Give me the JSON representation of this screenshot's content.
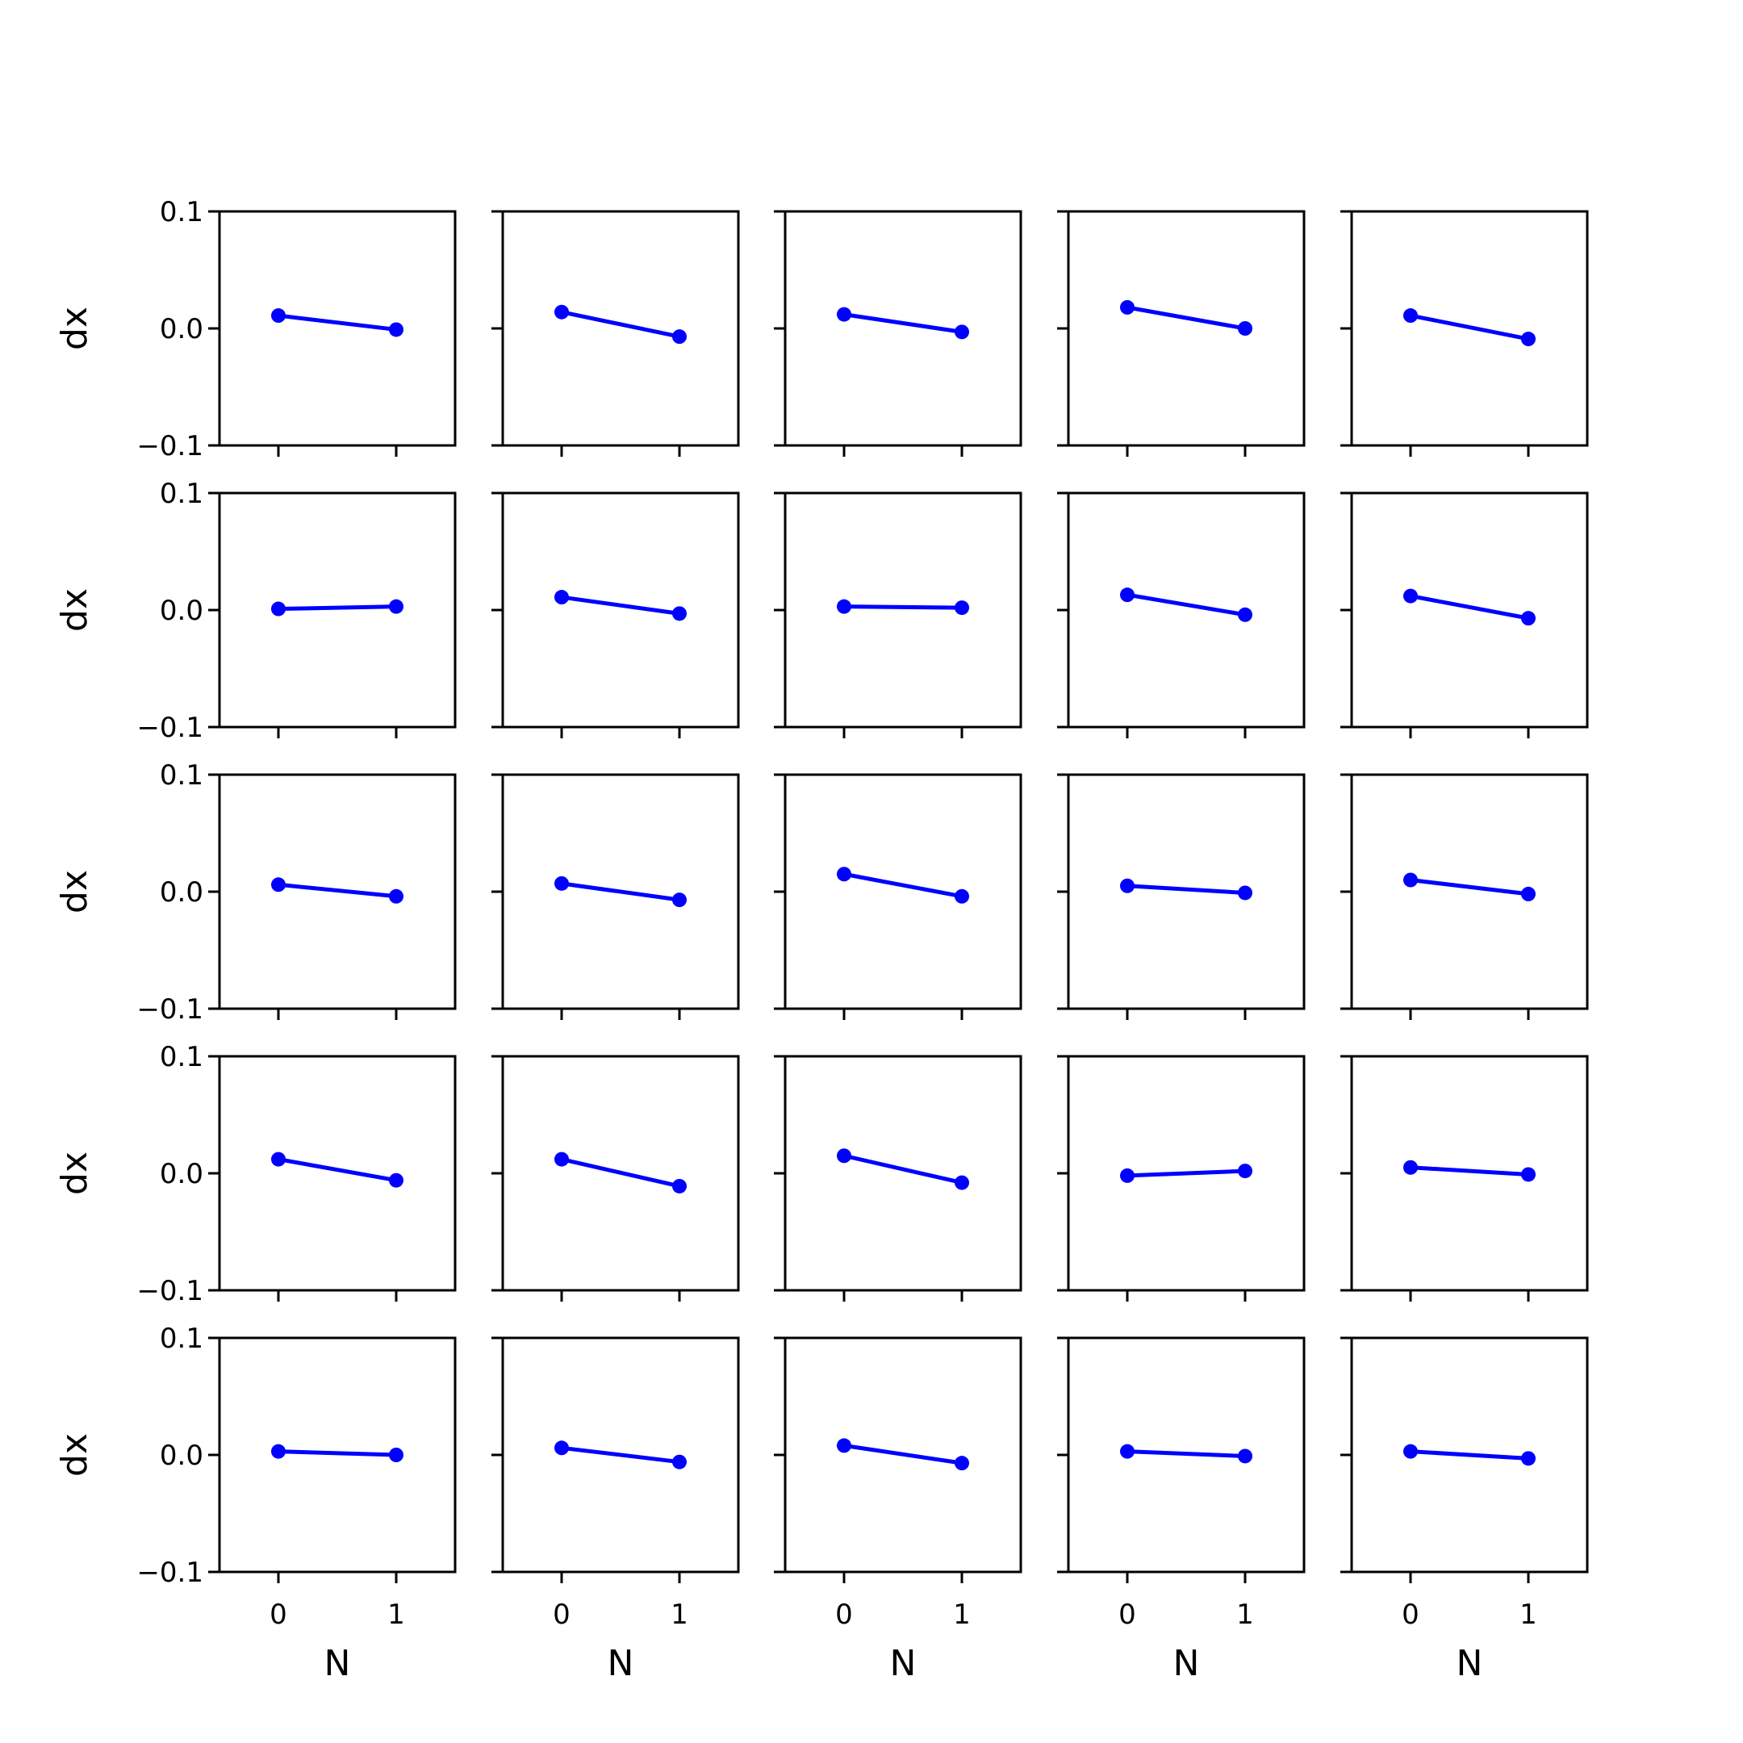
{
  "chart_data": {
    "type": "line",
    "layout": "5x5 grid of subplots",
    "shared_axes": true,
    "xlabel": "N",
    "ylabel": "dx",
    "xlim": [
      -0.5,
      1.5
    ],
    "ylim": [
      -0.1,
      0.1
    ],
    "xticks": [
      0,
      1
    ],
    "xtick_labels": [
      "0",
      "1"
    ],
    "yticks": [
      0.1,
      0.0,
      -0.1
    ],
    "ytick_labels": [
      "0.1",
      "0.0",
      "−0.1"
    ],
    "grid": false,
    "legend": "none",
    "color": "#0000ff",
    "marker": "circle",
    "x": [
      0,
      1
    ],
    "subplots": [
      [
        {
          "values": [
            0.011,
            -0.001
          ]
        },
        {
          "values": [
            0.014,
            -0.007
          ]
        },
        {
          "values": [
            0.012,
            -0.003
          ]
        },
        {
          "values": [
            0.018,
            0.0
          ]
        },
        {
          "values": [
            0.011,
            -0.009
          ]
        }
      ],
      [
        {
          "values": [
            0.001,
            0.003
          ]
        },
        {
          "values": [
            0.011,
            -0.003
          ]
        },
        {
          "values": [
            0.003,
            0.002
          ]
        },
        {
          "values": [
            0.013,
            -0.004
          ]
        },
        {
          "values": [
            0.012,
            -0.007
          ]
        }
      ],
      [
        {
          "values": [
            0.006,
            -0.004
          ]
        },
        {
          "values": [
            0.007,
            -0.007
          ]
        },
        {
          "values": [
            0.015,
            -0.004
          ]
        },
        {
          "values": [
            0.005,
            -0.001
          ]
        },
        {
          "values": [
            0.01,
            -0.002
          ]
        }
      ],
      [
        {
          "values": [
            0.012,
            -0.006
          ]
        },
        {
          "values": [
            0.012,
            -0.011
          ]
        },
        {
          "values": [
            0.015,
            -0.008
          ]
        },
        {
          "values": [
            -0.002,
            0.002
          ]
        },
        {
          "values": [
            0.005,
            -0.001
          ]
        }
      ],
      [
        {
          "values": [
            0.003,
            0.0
          ]
        },
        {
          "values": [
            0.006,
            -0.006
          ]
        },
        {
          "values": [
            0.008,
            -0.007
          ]
        },
        {
          "values": [
            0.003,
            -0.001
          ]
        },
        {
          "values": [
            0.003,
            -0.003
          ]
        }
      ]
    ]
  }
}
